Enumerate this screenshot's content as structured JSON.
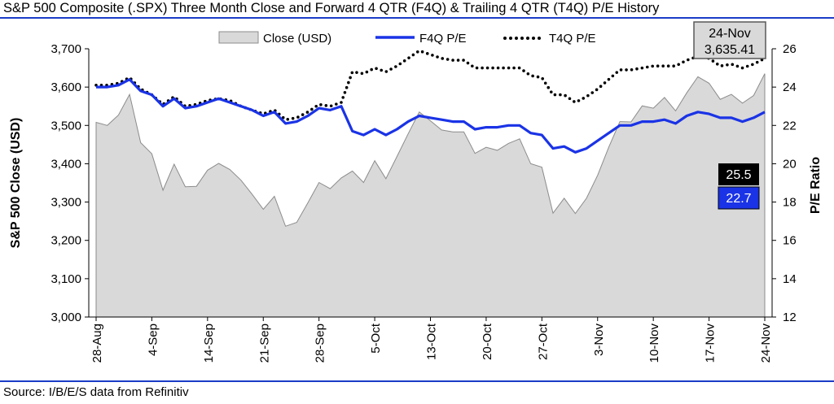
{
  "title": "S&P 500 Composite (.SPX) Three Month Close and Forward 4 QTR (F4Q) & Trailing 4 QTR (T4Q) P/E History",
  "source": "Source: I/B/E/S data from Refinitiv",
  "chart_data": {
    "type": "line",
    "title": "S&P 500 Composite (.SPX) Three Month Close and Forward 4 QTR (F4Q) & Trailing 4 QTR (T4Q) P/E History",
    "ylabel_left": "S&P 500 Close (USD)",
    "ylabel_right": "P/E Ratio",
    "ylim_left": [
      3000,
      3700
    ],
    "ylim_right": [
      12,
      26
    ],
    "yticks_left": [
      "3,000",
      "3,100",
      "3,200",
      "3,300",
      "3,400",
      "3,500",
      "3,600",
      "3,700"
    ],
    "yticks_right": [
      "12",
      "14",
      "16",
      "18",
      "20",
      "22",
      "24",
      "26"
    ],
    "xtick_labels": [
      "28-Aug",
      "4-Sep",
      "14-Sep",
      "21-Sep",
      "28-Sep",
      "5-Oct",
      "13-Oct",
      "20-Oct",
      "27-Oct",
      "3-Nov",
      "10-Nov",
      "17-Nov",
      "24-Nov"
    ],
    "legend_position": "top",
    "colors": {
      "close_fill": "#d9d9d9",
      "close_edge": "#8c8c8c",
      "f4q": "#1a33e6",
      "t4q": "#000000"
    },
    "series": [
      {
        "name": "Close (USD)",
        "axis": "left",
        "style": "area",
        "values": [
          3508,
          3500,
          3527,
          3581,
          3455,
          3426,
          3331,
          3399,
          3340,
          3341,
          3383,
          3401,
          3385,
          3357,
          3320,
          3281,
          3315,
          3237,
          3247,
          3298,
          3351,
          3335,
          3363,
          3381,
          3351,
          3408,
          3361,
          3419,
          3478,
          3535,
          3512,
          3488,
          3483,
          3483,
          3427,
          3443,
          3435,
          3453,
          3465,
          3400,
          3391,
          3271,
          3310,
          3270,
          3310,
          3370,
          3443,
          3510,
          3509,
          3551,
          3545,
          3573,
          3538,
          3585,
          3627,
          3610,
          3568,
          3581,
          3558,
          3578,
          3635
        ]
      },
      {
        "name": "F4Q P/E",
        "axis": "right",
        "style": "line",
        "values": [
          24.0,
          24.0,
          24.1,
          24.4,
          23.8,
          23.6,
          23.0,
          23.4,
          22.9,
          23.0,
          23.2,
          23.4,
          23.2,
          23.0,
          22.8,
          22.5,
          22.7,
          22.1,
          22.2,
          22.5,
          22.9,
          22.8,
          23.0,
          21.7,
          21.5,
          21.8,
          21.5,
          21.8,
          22.2,
          22.5,
          22.4,
          22.3,
          22.2,
          22.2,
          21.8,
          21.9,
          21.9,
          22.0,
          22.0,
          21.6,
          21.5,
          20.8,
          20.9,
          20.6,
          20.8,
          21.2,
          21.6,
          22.0,
          22.0,
          22.2,
          22.2,
          22.3,
          22.1,
          22.5,
          22.7,
          22.6,
          22.4,
          22.4,
          22.2,
          22.4,
          22.7
        ]
      },
      {
        "name": "T4Q P/E",
        "axis": "right",
        "style": "dotted",
        "values": [
          24.1,
          24.1,
          24.2,
          24.5,
          23.9,
          23.6,
          23.1,
          23.5,
          23.0,
          23.1,
          23.3,
          23.4,
          23.3,
          23.0,
          22.8,
          22.6,
          22.8,
          22.3,
          22.4,
          22.7,
          23.1,
          23.0,
          23.2,
          24.8,
          24.7,
          25.0,
          24.8,
          25.1,
          25.5,
          25.9,
          25.7,
          25.5,
          25.4,
          25.4,
          25.0,
          25.0,
          25.0,
          25.0,
          25.0,
          24.6,
          24.5,
          23.6,
          23.6,
          23.2,
          23.5,
          23.9,
          24.4,
          24.9,
          24.9,
          25.0,
          25.1,
          25.1,
          25.1,
          25.4,
          25.6,
          25.5,
          25.1,
          25.2,
          25.0,
          25.2,
          25.5
        ]
      }
    ],
    "callouts": {
      "date_box": {
        "date": "24-Nov",
        "value": "3,635.41"
      },
      "t4q_last": "25.5",
      "f4q_last": "22.7"
    }
  }
}
